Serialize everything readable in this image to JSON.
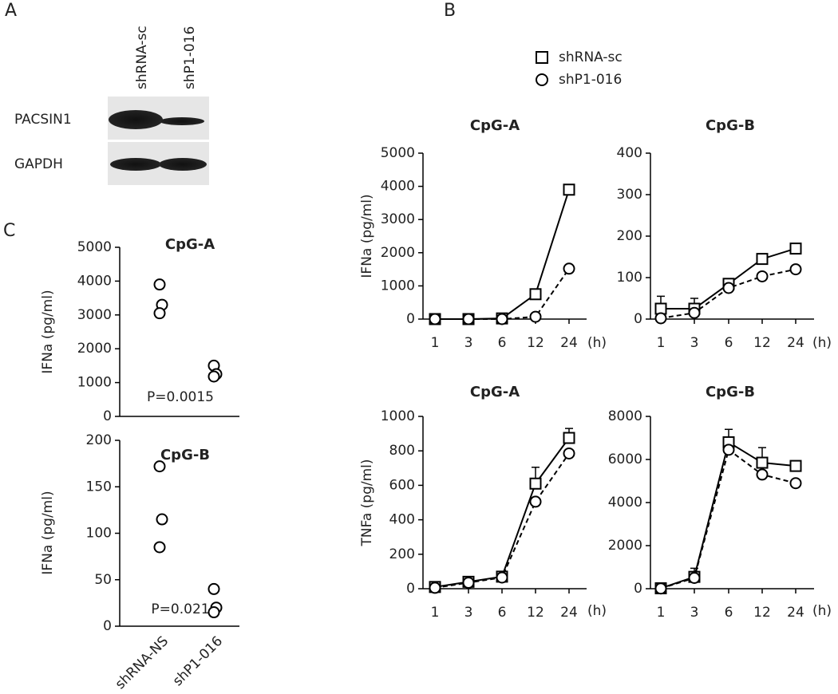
{
  "panel_labels": [
    "A",
    "B",
    "C"
  ],
  "blot": {
    "lanes": [
      "shRNA-sc",
      "shP1-016"
    ],
    "rows": [
      "PACSIN1",
      "GAPDH"
    ]
  },
  "chart_data": [
    {
      "type": "line",
      "title": "CpG-A",
      "y_label": "IFNa (pg/ml)",
      "x_label": "(h)",
      "categories": [
        "1",
        "3",
        "6",
        "12",
        "24"
      ],
      "ylim": [
        0,
        5000
      ],
      "yticks": [
        0,
        1000,
        2000,
        3000,
        4000,
        5000
      ],
      "series": [
        {
          "name": "shRNA-sc",
          "color": "#000000",
          "marker": "square",
          "linestyle": "solid",
          "values": [
            0,
            0,
            20,
            750,
            3900
          ],
          "errors": [
            0,
            0,
            0,
            50,
            150
          ]
        },
        {
          "name": "shP1-016",
          "color": "#000000",
          "marker": "circle",
          "linestyle": "dashed",
          "values": [
            0,
            0,
            0,
            70,
            1520
          ]
        }
      ]
    },
    {
      "type": "line",
      "title": "CpG-B",
      "x_label": "(h)",
      "categories": [
        "1",
        "3",
        "6",
        "12",
        "24"
      ],
      "ylim": [
        0,
        400
      ],
      "yticks": [
        0,
        100,
        200,
        300,
        400
      ],
      "series": [
        {
          "name": "shRNA-sc",
          "color": "#000000",
          "marker": "square",
          "linestyle": "solid",
          "values": [
            25,
            25,
            85,
            145,
            170
          ],
          "errors": [
            30,
            25,
            10,
            5,
            5
          ]
        },
        {
          "name": "shP1-016",
          "color": "#000000",
          "marker": "circle",
          "linestyle": "dashed",
          "values": [
            2,
            15,
            75,
            103,
            120
          ]
        }
      ]
    },
    {
      "type": "line",
      "title": "CpG-A",
      "y_label": "TNFa (pg/ml)",
      "x_label": "(h)",
      "categories": [
        "1",
        "3",
        "6",
        "12",
        "24"
      ],
      "ylim": [
        0,
        1000
      ],
      "yticks": [
        0,
        200,
        400,
        600,
        800,
        1000
      ],
      "series": [
        {
          "name": "shRNA-sc",
          "color": "#000000",
          "marker": "square",
          "linestyle": "solid",
          "values": [
            10,
            40,
            70,
            610,
            875
          ],
          "errors": [
            5,
            10,
            10,
            95,
            55
          ]
        },
        {
          "name": "shP1-016",
          "color": "#000000",
          "marker": "circle",
          "linestyle": "dashed",
          "values": [
            5,
            35,
            65,
            505,
            785
          ]
        }
      ]
    },
    {
      "type": "line",
      "title": "CpG-B",
      "x_label": "(h)",
      "categories": [
        "1",
        "3",
        "6",
        "12",
        "24"
      ],
      "ylim": [
        0,
        8000
      ],
      "yticks": [
        0,
        2000,
        4000,
        6000,
        8000
      ],
      "series": [
        {
          "name": "shRNA-sc",
          "color": "#000000",
          "marker": "square",
          "linestyle": "solid",
          "values": [
            20,
            550,
            6800,
            5850,
            5700
          ],
          "errors": [
            0,
            400,
            600,
            700,
            100
          ]
        },
        {
          "name": "shP1-016",
          "color": "#000000",
          "marker": "circle",
          "linestyle": "dashed",
          "values": [
            10,
            500,
            6450,
            5300,
            4900
          ]
        }
      ]
    },
    {
      "type": "strip",
      "title": "CpG-A",
      "y_label": "IFNa (pg/ml)",
      "annotation": "P=0.0015",
      "ylim": [
        0,
        5000
      ],
      "yticks": [
        0,
        1000,
        2000,
        3000,
        4000,
        5000
      ],
      "color": "#000000",
      "groups": [
        [
          3900,
          3300,
          3050
        ],
        [
          1500,
          1250,
          1180
        ]
      ]
    },
    {
      "type": "strip",
      "title": "CpG-B",
      "y_label": "IFNa (pg/ml)",
      "annotation": "P=0.021",
      "categories": [
        "shRNA-NS",
        "shP1-016"
      ],
      "ylim": [
        0,
        200
      ],
      "yticks": [
        0,
        50,
        100,
        150,
        200
      ],
      "color": "#000000",
      "groups": [
        [
          172,
          115,
          85
        ],
        [
          40,
          20,
          15
        ]
      ]
    }
  ]
}
